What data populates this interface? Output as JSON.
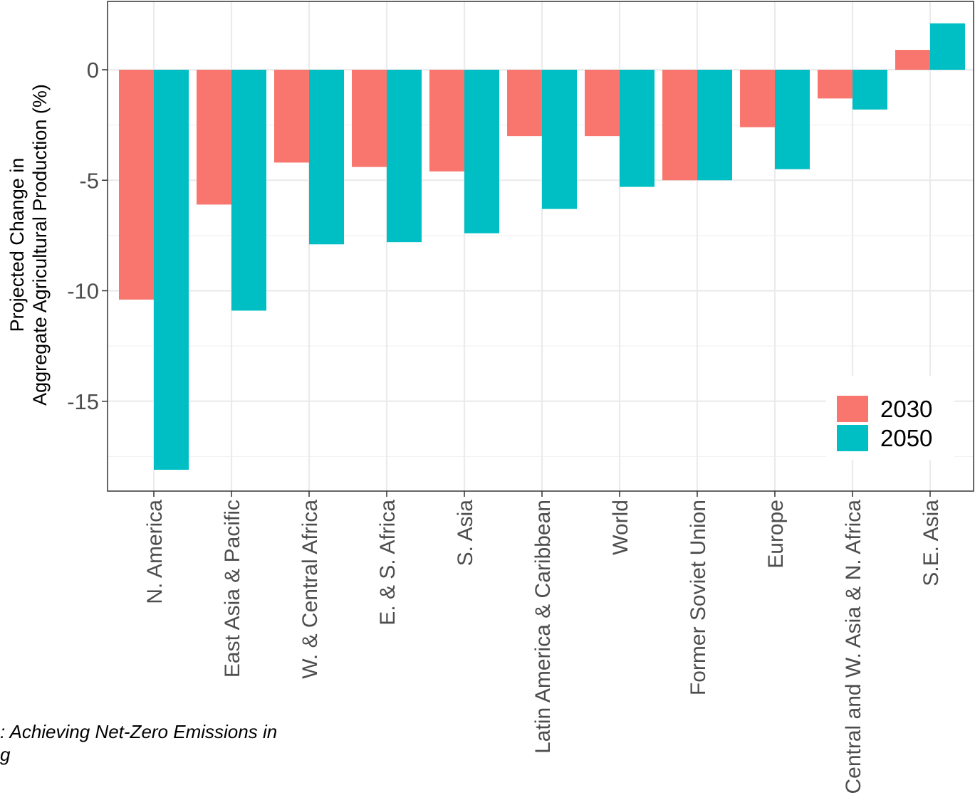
{
  "chart_data": {
    "type": "bar",
    "ylabel_lines": [
      "Projected Change in",
      "Aggregate Agricultural Production (%)"
    ],
    "xlabel": "",
    "ylim": [
      -18.2,
      2.1
    ],
    "yticks": [
      0,
      -5,
      -10,
      -15
    ],
    "ytick_labels": [
      "0",
      "-5",
      "-10",
      "-15"
    ],
    "grid": true,
    "legend_position": "bottom-right",
    "categories": [
      "N. America",
      "East Asia & Pacific",
      "W. & Central Africa",
      "E. & S. Africa",
      "S. Asia",
      "Latin America & Caribbean",
      "World",
      "Former Soviet Union",
      "Europe",
      "Central and W. Asia & N. Africa",
      "S.E. Asia"
    ],
    "series": [
      {
        "name": "2030",
        "color": "#F8766D",
        "values": [
          -10.4,
          -6.1,
          -4.2,
          -4.4,
          -4.6,
          -3.0,
          -3.0,
          -5.0,
          -2.6,
          -1.3,
          0.9
        ]
      },
      {
        "name": "2050",
        "color": "#00BFC4",
        "values": [
          -18.1,
          -10.9,
          -7.9,
          -7.8,
          -7.4,
          -6.3,
          -5.3,
          -5.0,
          -4.5,
          -1.8,
          2.1
        ]
      }
    ]
  },
  "caption": {
    "line1": ": Achieving Net-Zero Emissions in",
    "line2": "g"
  }
}
